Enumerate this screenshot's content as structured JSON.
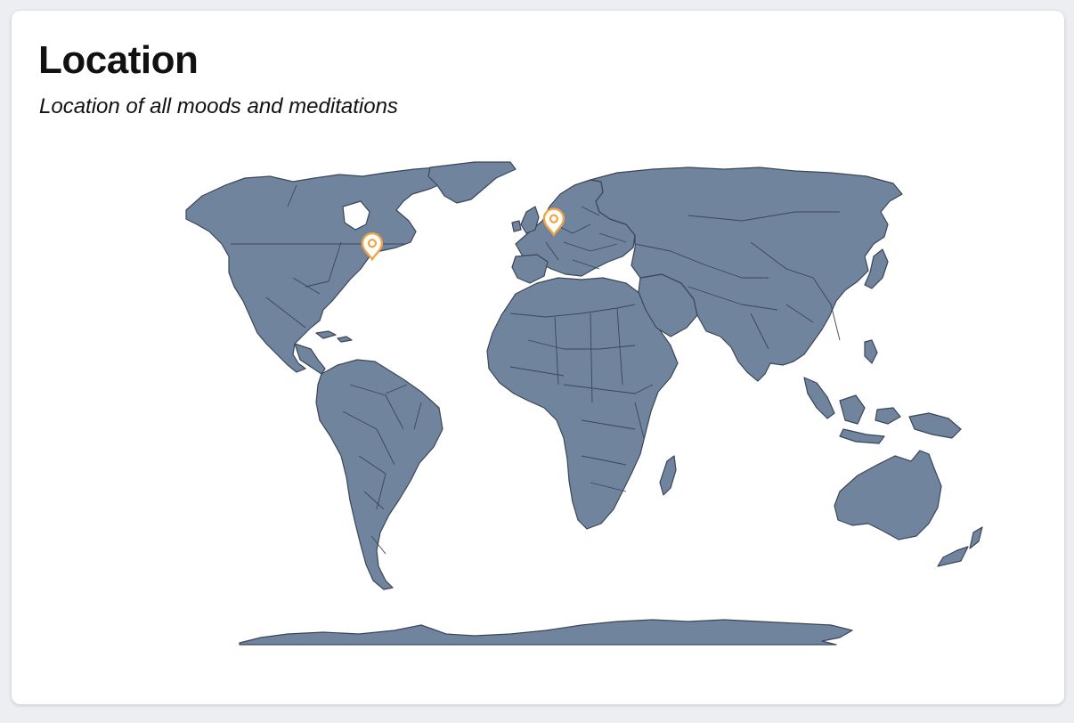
{
  "card": {
    "title": "Location",
    "subtitle": "Location of all moods and meditations"
  },
  "map": {
    "projection": "world-map",
    "land_color": "#71849e",
    "border_color": "#3a4658",
    "pin_color": "#f0a442",
    "markers": [
      {
        "name": "North America (Great Lakes region)",
        "lat": 43.7,
        "lon": -79.4,
        "icon": "map-pin-icon"
      },
      {
        "name": "Western Europe (Netherlands region)",
        "lat": 52.3,
        "lon": 4.9,
        "icon": "map-pin-icon"
      }
    ]
  }
}
